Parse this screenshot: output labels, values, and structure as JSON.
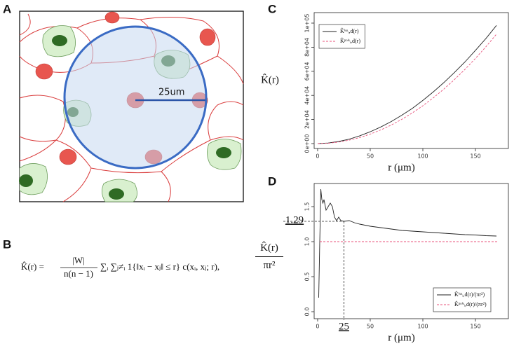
{
  "panel_labels": [
    "A",
    "B",
    "C",
    "D"
  ],
  "illustration": {
    "scale_label": "25um"
  },
  "formula": {
    "lhs": "K̂(r) =",
    "numerator": "|W|",
    "denominator": "n(n − 1)",
    "rhs": "∑ᵢ ∑ⱼ≠ᵢ 1{‖xᵢ − xⱼ‖ ≤ r} c(xᵢ, xⱼ; r),"
  },
  "chart_data": [
    {
      "type": "line",
      "xlabel": "r (μm)",
      "ylabel": [
        "K̂(r)"
      ],
      "x": [
        0,
        10,
        20,
        30,
        40,
        50,
        60,
        70,
        80,
        90,
        100,
        110,
        120,
        130,
        140,
        150,
        160,
        170
      ],
      "series": [
        {
          "name": "K̂ⁱˢᵒᵢ,d(r)",
          "color": "#222222",
          "dash": "none",
          "values": [
            0,
            471,
            1760,
            3647,
            6434,
            9818,
            13798,
            18319,
            23524,
            29264,
            35814,
            42955,
            50668,
            58933,
            67733,
            77401,
            87261,
            98055
          ]
        },
        {
          "name": "K̂ᵖᵒⁱˢᵢ,d(r)",
          "color": "#e8507a",
          "dash": "3,2",
          "values": [
            0,
            314,
            1257,
            2827,
            5027,
            7854,
            11310,
            15394,
            20106,
            25447,
            31416,
            38013,
            45239,
            53093,
            61575,
            70686,
            80425,
            90792
          ]
        }
      ],
      "xlim": [
        -3.3,
        181.3
      ],
      "xticks": [
        0,
        50,
        100,
        150
      ],
      "ylim": [
        -4070,
        108720
      ],
      "yticks": [
        {
          "value": 0,
          "label": "0e+00"
        },
        {
          "value": 20000,
          "label": "2e+04"
        },
        {
          "value": 40000,
          "label": "4e+04"
        },
        {
          "value": 60000,
          "label": "6e+04"
        },
        {
          "value": 80000,
          "label": "8e+04"
        },
        {
          "value": 100000,
          "label": "1e+05"
        }
      ],
      "legend": "upper left"
    },
    {
      "type": "line",
      "xlabel": "r (μm)",
      "ylabel": [
        "K̂(r)",
        "πr²"
      ],
      "series": [
        {
          "name": "K̂ⁱˢᵒᵢ,d(r)/(πr²)",
          "color": "#222222",
          "dash": "none",
          "x": [
            1,
            2,
            3,
            4,
            5,
            6,
            8,
            10,
            12,
            14,
            16,
            18,
            20,
            22,
            25,
            30,
            35,
            40,
            50,
            60,
            70,
            80,
            90,
            100,
            110,
            120,
            130,
            140,
            150,
            160,
            170
          ],
          "values": [
            0.2,
            1.0,
            1.75,
            1.6,
            1.55,
            1.6,
            1.45,
            1.5,
            1.55,
            1.5,
            1.35,
            1.3,
            1.35,
            1.3,
            1.29,
            1.3,
            1.27,
            1.25,
            1.22,
            1.2,
            1.18,
            1.16,
            1.15,
            1.14,
            1.13,
            1.12,
            1.11,
            1.1,
            1.095,
            1.085,
            1.08
          ]
        },
        {
          "name": "K̂ᵖᵒⁱˢᵢ,d(r)/(πr²)",
          "color": "#e8507a",
          "dash": "3,2",
          "x": [
            2,
            172
          ],
          "values": [
            1,
            1
          ]
        }
      ],
      "xlim": [
        -3.3,
        181.3
      ],
      "xticks": [
        0,
        50,
        100,
        150
      ],
      "ylim": [
        -0.1,
        1.83
      ],
      "yticks": [
        {
          "value": 0,
          "label": "0.0"
        },
        0.5,
        {
          "value": 1,
          "label": "1.0"
        },
        1.5
      ],
      "reference_point": {
        "x": 25,
        "y": 1.29
      },
      "legend": "lower right"
    }
  ]
}
